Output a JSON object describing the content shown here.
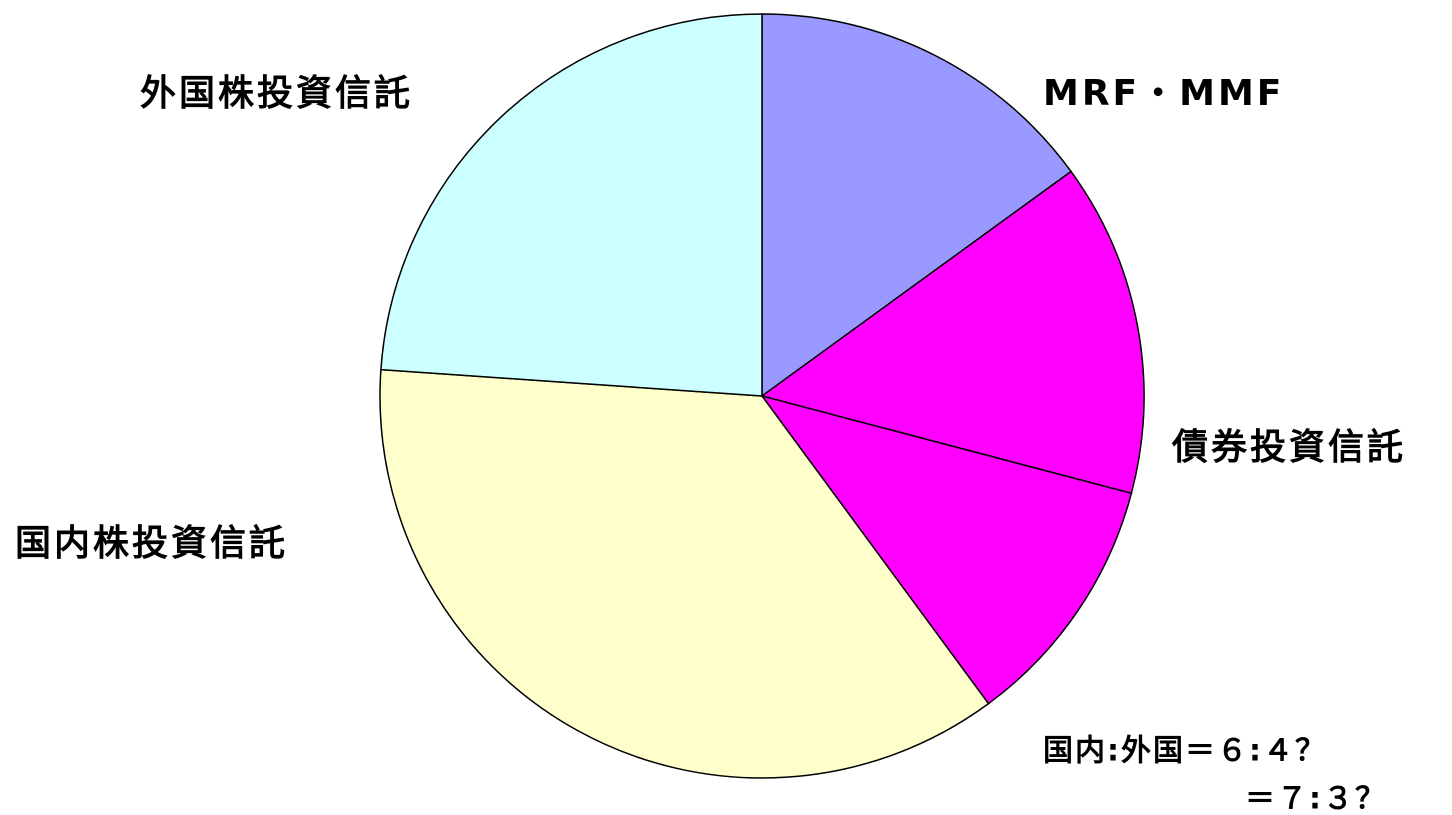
{
  "chart_data": {
    "type": "pie",
    "categories": [
      "MRF・MMF",
      "債券投資信託",
      null,
      "国内株投資信託",
      "外国株投資信託"
    ],
    "values": [
      15,
      14.1,
      10.8,
      36.2,
      23.9
    ],
    "colors": [
      "#9999ff",
      "#ff00ff",
      "#ff00ff",
      "#ffffcc",
      "#ccffff"
    ],
    "annotations": [
      "国内:外国＝６:４？",
      "＝７:３？"
    ]
  }
}
